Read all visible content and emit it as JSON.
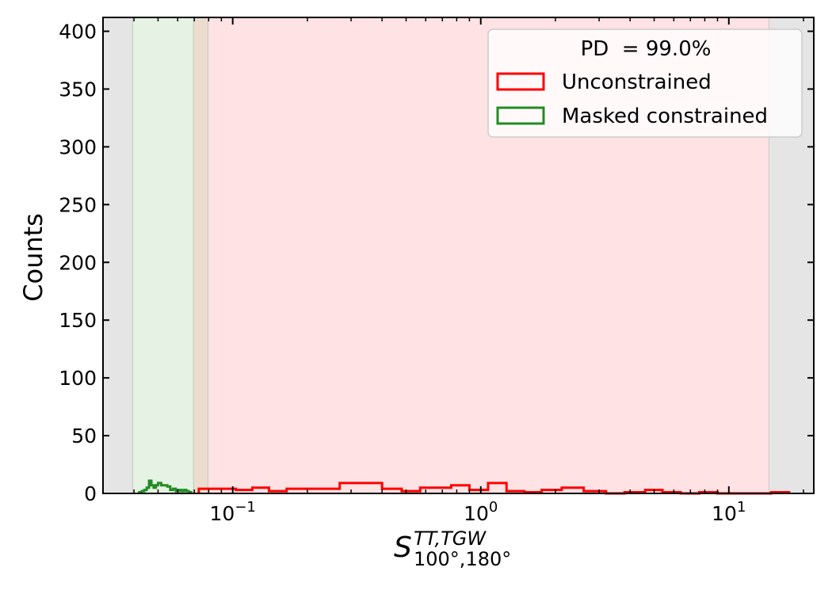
{
  "chart_data": {
    "type": "histogram",
    "xscale": "log",
    "xlim": [
      0.03,
      22
    ],
    "ylim": [
      0,
      412
    ],
    "ylabel": "Counts",
    "xlabel": {
      "base": "S",
      "sup": "TT,TGW",
      "sub": "100°,180°"
    },
    "xticks": [
      {
        "value": 0.1,
        "label": "10",
        "exp": "−1"
      },
      {
        "value": 1,
        "label": "10",
        "exp": "0"
      },
      {
        "value": 10,
        "label": "10",
        "exp": "1"
      }
    ],
    "yticks": [
      0,
      50,
      100,
      150,
      200,
      250,
      300,
      350,
      400
    ],
    "legend": {
      "title": "PD  = 99.0%",
      "placement": "upper right"
    },
    "regions": [
      {
        "name": "excluded-low",
        "from": 0.03,
        "to": 0.0395,
        "color": "#e5e5e5"
      },
      {
        "name": "constrained-region",
        "from": 0.0395,
        "to": 0.0695,
        "color": "#e6f2e3"
      },
      {
        "name": "overlap-region",
        "from": 0.0695,
        "to": 0.0795,
        "color": "#ecdcd0"
      },
      {
        "name": "unconstrained-region",
        "from": 0.0795,
        "to": 14.5,
        "color": "#ffe2e4"
      },
      {
        "name": "excluded-high",
        "from": 14.5,
        "to": 22,
        "color": "#e5e5e5"
      }
    ],
    "series": [
      {
        "name": "Unconstrained",
        "color": "#ff0000",
        "edges": [
          0.073,
          0.103,
          0.12,
          0.14,
          0.165,
          0.19,
          0.27,
          0.4,
          0.48,
          0.57,
          0.76,
          0.9,
          1.07,
          1.27,
          1.5,
          1.76,
          2.12,
          2.6,
          3.2,
          3.8,
          4.6,
          5.4,
          6.4,
          7.6,
          9.0,
          10.6,
          12.5,
          14.8,
          17.5
        ],
        "counts": [
          4,
          3,
          5,
          2,
          4,
          4,
          9,
          4,
          2,
          5,
          7,
          3,
          9,
          2,
          1,
          3,
          5,
          2,
          0,
          1,
          3,
          1,
          0,
          1,
          0,
          0,
          0,
          1
        ]
      },
      {
        "name": "Masked constrained",
        "color": "#228b22",
        "edges": [
          0.042,
          0.043,
          0.044,
          0.045,
          0.046,
          0.047,
          0.048,
          0.049,
          0.05,
          0.0515,
          0.053,
          0.0545,
          0.056,
          0.0575,
          0.059,
          0.0605,
          0.062,
          0.0635,
          0.065,
          0.0665,
          0.068
        ],
        "counts": [
          1,
          2,
          3,
          5,
          11,
          7,
          5,
          7,
          9,
          7,
          7,
          6,
          3,
          4,
          2,
          3,
          2,
          3,
          2,
          1
        ]
      }
    ]
  }
}
